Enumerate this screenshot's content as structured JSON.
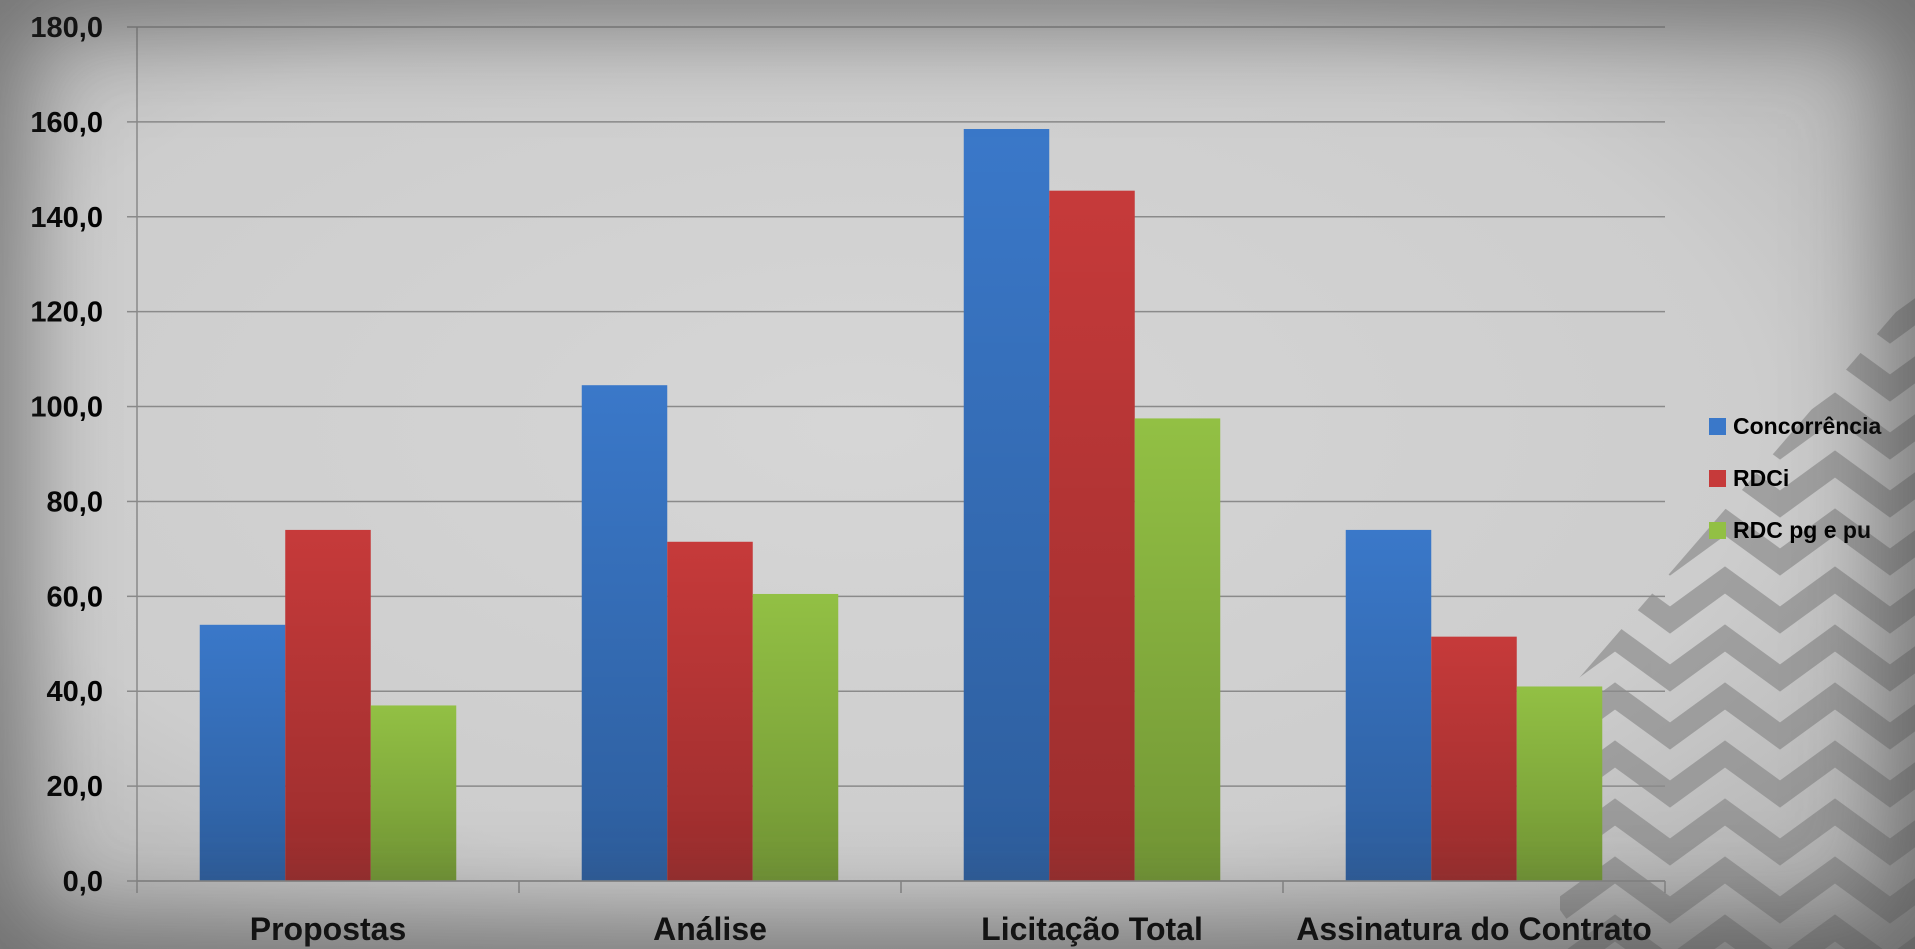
{
  "chart_data": {
    "type": "bar",
    "title": "",
    "xlabel": "",
    "ylabel": "",
    "categories": [
      "Propostas",
      "Análise",
      "Licitação Total",
      "Assinatura do Contrato"
    ],
    "series": [
      {
        "name": "Concorrência",
        "values": [
          54.0,
          104.5,
          158.5,
          74.0
        ],
        "color": "#3a78c9"
      },
      {
        "name": "RDCi",
        "values": [
          74.0,
          71.5,
          145.5,
          51.5
        ],
        "color": "#c63a3a"
      },
      {
        "name": "RDC pg e pu",
        "values": [
          37.0,
          60.5,
          97.5,
          41.0
        ],
        "color": "#92c044"
      }
    ],
    "ylim": [
      0,
      180
    ],
    "yticks": [
      "0,0",
      "20,0",
      "40,0",
      "60,0",
      "80,0",
      "100,0",
      "120,0",
      "140,0",
      "160,0",
      "180,0"
    ],
    "grid": true,
    "legend_position": "right"
  }
}
